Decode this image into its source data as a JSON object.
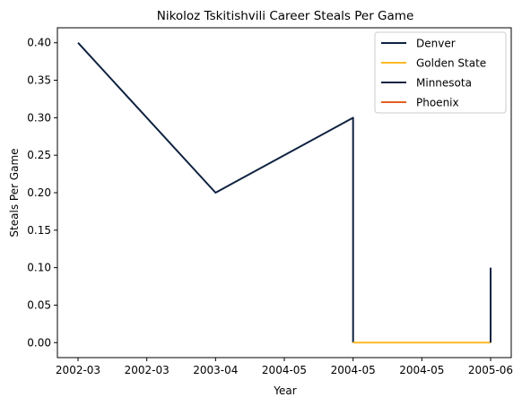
{
  "chart_data": {
    "type": "line",
    "title": "Nikoloz Tskitishvili Career Steals Per Game",
    "xlabel": "Year",
    "ylabel": "Steals Per Game",
    "x_tick_labels": [
      "2002-03",
      "2002-03",
      "2003-04",
      "2004-05",
      "2004-05",
      "2004-05",
      "2005-06"
    ],
    "y_ticks": [
      "0.00",
      "0.05",
      "0.10",
      "0.15",
      "0.20",
      "0.25",
      "0.30",
      "0.35",
      "0.40"
    ],
    "ylim": [
      -0.02,
      0.42
    ],
    "grid": false,
    "legend_position": "top-right",
    "series": [
      {
        "name": "Denver",
        "color": "#0e2240",
        "points": [
          {
            "x": "2002-03",
            "y": 0.4
          },
          {
            "x": "2003-04",
            "y": 0.2
          },
          {
            "x": "2004-05",
            "y": 0.3
          },
          {
            "x": "2004-05",
            "y": 0.0
          }
        ]
      },
      {
        "name": "Golden State",
        "color": "#fdb927",
        "points": [
          {
            "x": "2004-05",
            "y": 0.0
          },
          {
            "x": "2005-06",
            "y": 0.0
          }
        ]
      },
      {
        "name": "Minnesota",
        "color": "#0c2340",
        "points": [
          {
            "x": "2005-06",
            "y": 0.0
          },
          {
            "x": "2005-06",
            "y": 0.1
          }
        ]
      },
      {
        "name": "Phoenix",
        "color": "#e56020",
        "points": []
      }
    ]
  }
}
